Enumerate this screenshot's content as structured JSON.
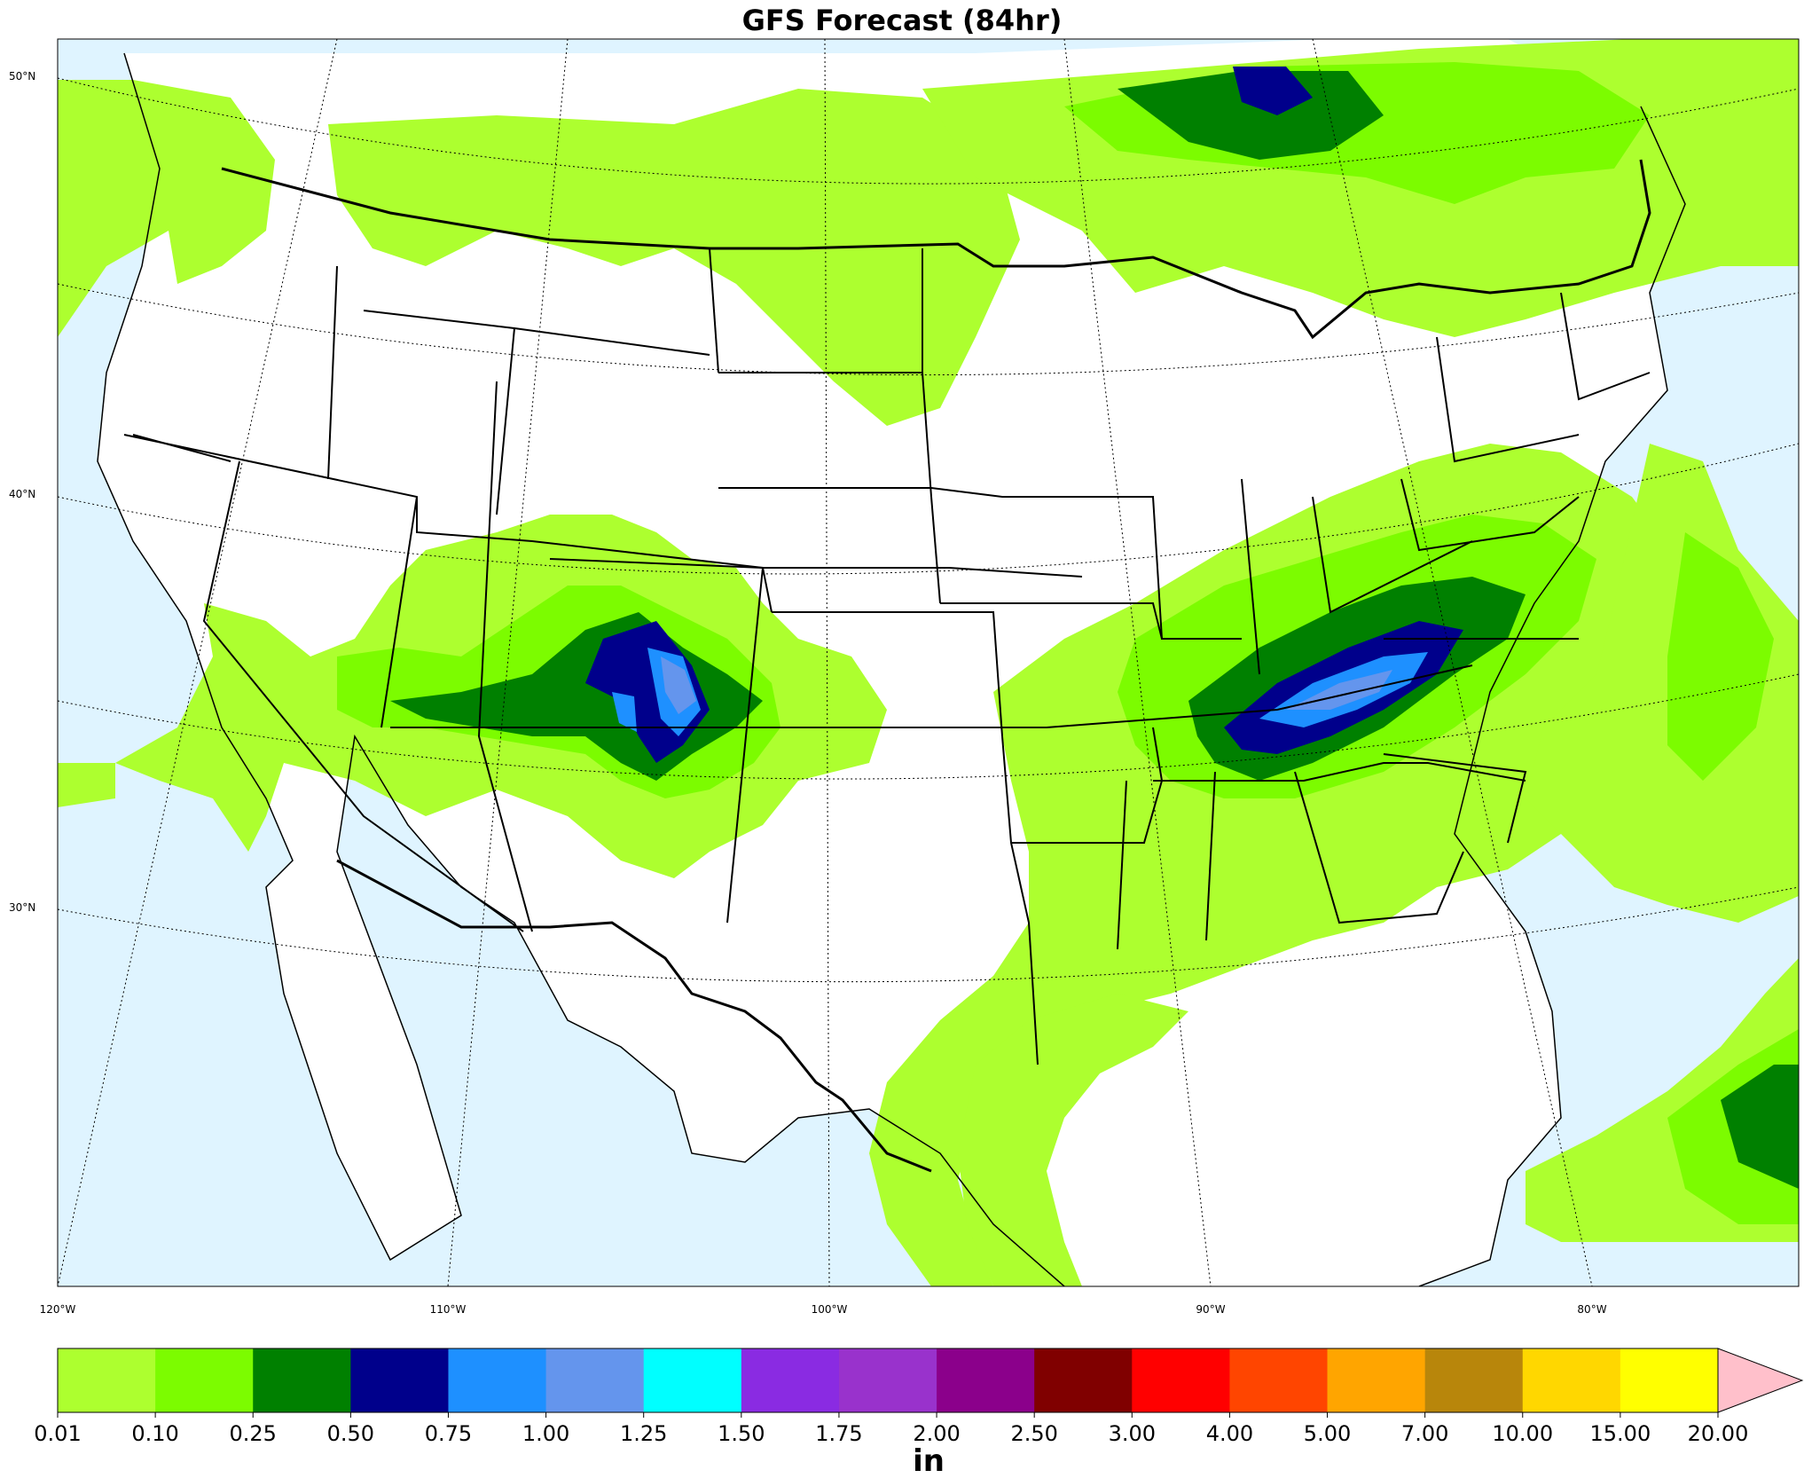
{
  "title": "GFS Forecast (84hr)",
  "lat_labels": [
    "50°N",
    "40°N",
    "30°N"
  ],
  "lon_labels": [
    "120°W",
    "110°W",
    "100°W",
    "90°W",
    "80°W"
  ],
  "colorbar": {
    "unit": "in",
    "ticks": [
      "0.01",
      "0.10",
      "0.25",
      "0.50",
      "0.75",
      "1.00",
      "1.25",
      "1.50",
      "1.75",
      "2.00",
      "2.50",
      "3.00",
      "4.00",
      "5.00",
      "7.00",
      "10.00",
      "15.00",
      "20.00"
    ],
    "colors": [
      "#adff2f",
      "#7cfc00",
      "#008000",
      "#00008b",
      "#1e90ff",
      "#6495ed",
      "#00ffff",
      "#8a2be2",
      "#9932cc",
      "#8b008b",
      "#800000",
      "#ff0000",
      "#ff4500",
      "#ffa500",
      "#b8860b",
      "#ffd700",
      "#ffff00"
    ],
    "extend_color": "#ffc0cb"
  },
  "colors": {
    "ocean": "#dff4ff",
    "land": "#ffffff",
    "precip_light": "#adff2f",
    "precip_010": "#7cfc00",
    "precip_025": "#008000",
    "precip_050": "#00008b",
    "precip_075": "#1e90ff",
    "precip_100": "#6495ed"
  }
}
